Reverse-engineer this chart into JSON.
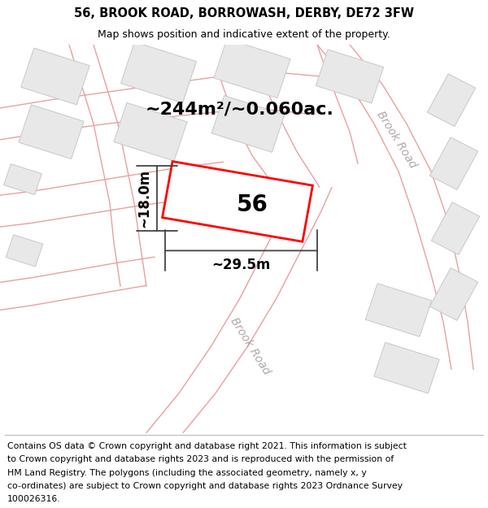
{
  "title": "56, BROOK ROAD, BORROWASH, DERBY, DE72 3FW",
  "subtitle": "Map shows position and indicative extent of the property.",
  "footer_lines": [
    "Contains OS data © Crown copyright and database right 2021. This information is subject",
    "to Crown copyright and database rights 2023 and is reproduced with the permission of",
    "HM Land Registry. The polygons (including the associated geometry, namely x, y",
    "co-ordinates) are subject to Crown copyright and database rights 2023 Ordnance Survey",
    "100026316."
  ],
  "area_label": "~244m²/~0.060ac.",
  "width_label": "~29.5m",
  "height_label": "~18.0m",
  "number_label": "56",
  "map_bg": "#ffffff",
  "road_line_color": "#e8a0a0",
  "building_fill": "#e8e8e8",
  "building_edge": "#c8c8c8",
  "highlight_color": "#ff0000",
  "road_label_color": "#b0a8a8",
  "dim_color": "#444444",
  "title_fontsize": 10.5,
  "subtitle_fontsize": 9,
  "footer_fontsize": 7.8,
  "dim_label_fontsize": 12,
  "number_fontsize": 20,
  "area_fontsize": 16,
  "road_fontsize": 10
}
